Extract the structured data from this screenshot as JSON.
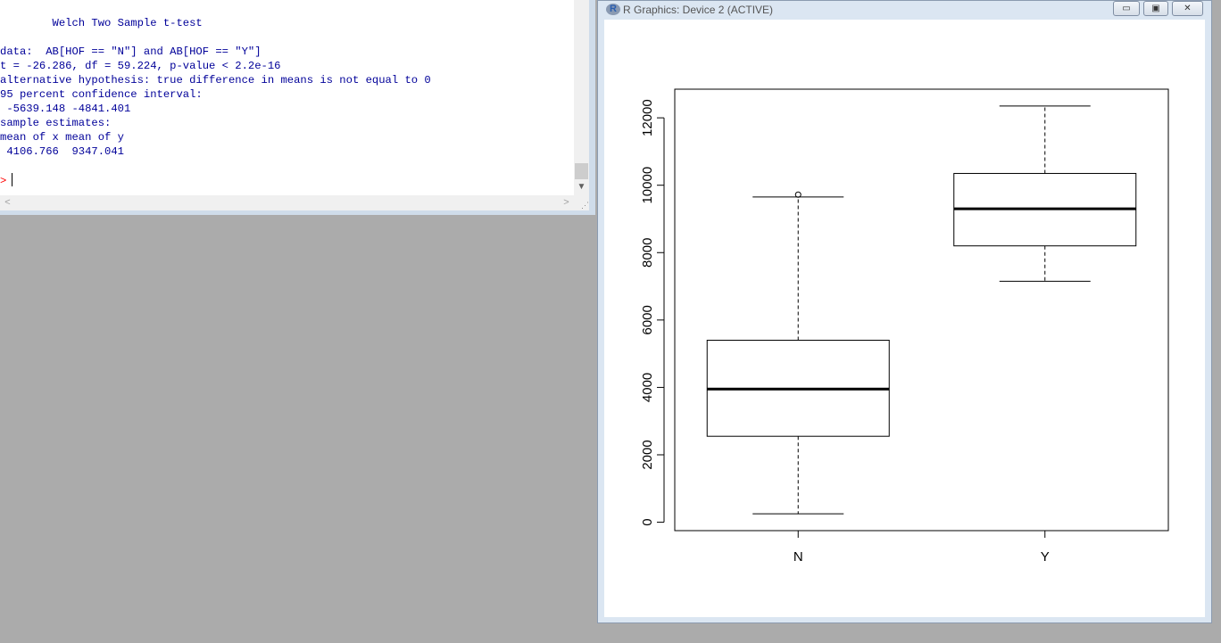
{
  "console": {
    "lines": [
      "        Welch Two Sample t-test",
      "",
      "data:  AB[HOF == \"N\"] and AB[HOF == \"Y\"]",
      "t = -26.286, df = 59.224, p-value < 2.2e-16",
      "alternative hypothesis: true difference in means is not equal to 0",
      "95 percent confidence interval:",
      " -5639.148 -4841.401",
      "sample estimates:",
      "mean of x mean of y",
      " 4106.766  9347.041"
    ],
    "prompt": ">"
  },
  "graphics_window": {
    "title": "R Graphics: Device 2 (ACTIVE)",
    "logo_text": "R",
    "minimize_symbol": "▭",
    "maximize_symbol": "▣",
    "close_symbol": "✕"
  },
  "chart_data": {
    "type": "boxplot",
    "categories": [
      "N",
      "Y"
    ],
    "boxes": [
      {
        "category": "N",
        "whisker_low": 250,
        "q1": 2550,
        "median": 3950,
        "q3": 5400,
        "whisker_high": 9650,
        "outliers": [
          9720
        ]
      },
      {
        "category": "Y",
        "whisker_low": 7150,
        "q1": 8200,
        "median": 9300,
        "q3": 10350,
        "whisker_high": 12350,
        "outliers": []
      }
    ],
    "yticks": [
      0,
      2000,
      4000,
      6000,
      8000,
      10000,
      12000
    ],
    "ylim": [
      -250,
      12850
    ],
    "colors": {
      "box_fill": "#ffffff",
      "stroke": "#000000"
    }
  }
}
